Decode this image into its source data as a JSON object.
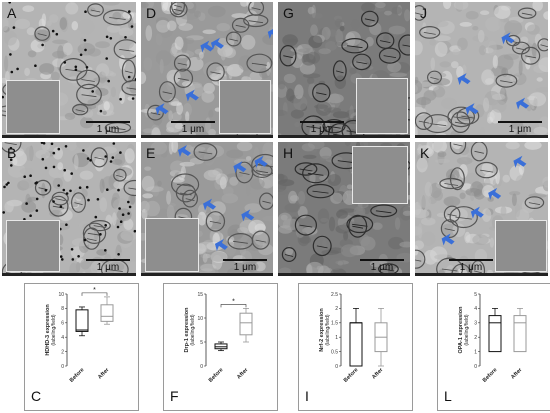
{
  "figure": {
    "panels": [
      {
        "label": "A",
        "scale": "1 μm"
      },
      {
        "label": "B",
        "scale": "1 μm"
      },
      {
        "label": "D",
        "scale": "1 μm"
      },
      {
        "label": "E",
        "scale": "1 μm"
      },
      {
        "label": "G",
        "scale": "1 μm"
      },
      {
        "label": "H",
        "scale": "1 μm"
      },
      {
        "label": "J",
        "scale": "1 μm"
      },
      {
        "label": "K",
        "scale": "1 μm"
      }
    ],
    "arrow_color": "#3a6fd8"
  },
  "chart_data": [
    {
      "type": "box",
      "panel_label": "C",
      "ylabel": "HDHD-3 expression",
      "yunit": "(labeling/field)",
      "ylim": [
        0,
        10
      ],
      "yticks": [
        0,
        2,
        4,
        6,
        8,
        10
      ],
      "categories": [
        "Before",
        "After"
      ],
      "boxes": [
        {
          "min": 4.2,
          "q1": 4.8,
          "median": 5.0,
          "q3": 7.8,
          "max": 8.2
        },
        {
          "min": 5.8,
          "q1": 6.2,
          "median": 6.9,
          "q3": 8.5,
          "max": 9.6
        }
      ],
      "annotation": "*"
    },
    {
      "type": "box",
      "panel_label": "F",
      "ylabel": "Drp-1 expression",
      "yunit": "(labeling/field)",
      "ylim": [
        0,
        15
      ],
      "yticks": [
        0,
        5,
        10,
        15
      ],
      "categories": [
        "Before",
        "After"
      ],
      "boxes": [
        {
          "min": 3.2,
          "q1": 3.6,
          "median": 4.0,
          "q3": 4.6,
          "max": 5.0
        },
        {
          "min": 5.0,
          "q1": 6.5,
          "median": 9.0,
          "q3": 11.0,
          "max": 12.0
        }
      ],
      "annotation": "*"
    },
    {
      "type": "box",
      "panel_label": "I",
      "ylabel": "Nrf-2 expression",
      "yunit": "(labeling/field)",
      "ylim": [
        0,
        2.5
      ],
      "yticks": [
        0.0,
        0.5,
        1.0,
        1.5,
        2.0,
        2.5
      ],
      "categories": [
        "Before",
        "After"
      ],
      "boxes": [
        {
          "min": 0.0,
          "q1": 0.0,
          "median": 1.5,
          "q3": 1.5,
          "max": 2.0
        },
        {
          "min": 0.0,
          "q1": 0.5,
          "median": 1.0,
          "q3": 1.5,
          "max": 2.0
        }
      ],
      "annotation": ""
    },
    {
      "type": "box",
      "panel_label": "L",
      "ylabel": "OPA-1 expression",
      "yunit": "(labeling/field)",
      "ylim": [
        0,
        5
      ],
      "yticks": [
        0,
        1,
        2,
        3,
        4,
        5
      ],
      "categories": [
        "Before",
        "After"
      ],
      "boxes": [
        {
          "min": 1.0,
          "q1": 1.0,
          "median": 3.0,
          "q3": 3.5,
          "max": 4.0
        },
        {
          "min": 1.0,
          "q1": 1.0,
          "median": 3.0,
          "q3": 3.5,
          "max": 4.0
        }
      ],
      "annotation": ""
    }
  ]
}
